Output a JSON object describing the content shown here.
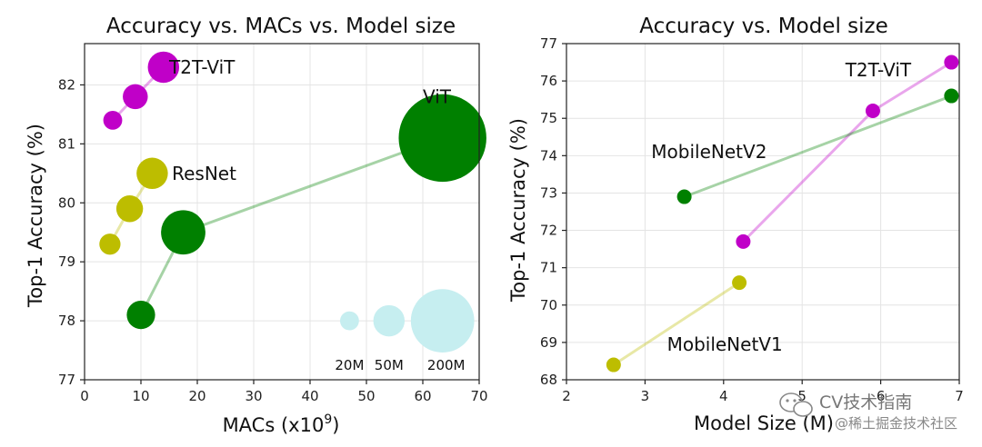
{
  "chart_data": [
    {
      "type": "scatter",
      "title": "Accuracy vs. MACs vs. Model size",
      "xlabel": "MACs (x10",
      "xlabel_sup": "9",
      "xlabel_close": ")",
      "ylabel": "Top-1 Accuracy (%)",
      "xlim": [
        0,
        70
      ],
      "ylim": [
        77,
        82.7
      ],
      "xticks": [
        "0",
        "10",
        "20",
        "30",
        "40",
        "50",
        "60",
        "70"
      ],
      "yticks": [
        "77",
        "78",
        "79",
        "80",
        "81",
        "82"
      ],
      "grid": true,
      "series": [
        {
          "name": "T2T-ViT",
          "color": "#c000c8",
          "label_at": [
            15,
            82.3
          ],
          "points": [
            {
              "x": 5,
              "y": 81.4,
              "size_m": 4
            },
            {
              "x": 9,
              "y": 81.8,
              "size_m": 7
            },
            {
              "x": 14,
              "y": 82.3,
              "size_m": 11
            }
          ]
        },
        {
          "name": "ResNet",
          "color": "#bdbd00",
          "label_at": [
            15.5,
            80.5
          ],
          "points": [
            {
              "x": 4.5,
              "y": 79.3,
              "size_m": 5
            },
            {
              "x": 8,
              "y": 79.9,
              "size_m": 8
            },
            {
              "x": 12,
              "y": 80.5,
              "size_m": 11
            }
          ]
        },
        {
          "name": "ViT",
          "color": "#008000",
          "label_at": [
            60,
            81.8
          ],
          "points": [
            {
              "x": 10,
              "y": 78.1,
              "size_m": 9
            },
            {
              "x": 17.5,
              "y": 79.5,
              "size_m": 22
            },
            {
              "x": 63.5,
              "y": 81.1,
              "size_m": 86
            }
          ]
        }
      ],
      "size_legend": {
        "color": "#c6eef0",
        "items": [
          {
            "label": "20M",
            "x": 47,
            "y": 78,
            "size_m": 4
          },
          {
            "label": "50M",
            "x": 54,
            "y": 78,
            "size_m": 11
          },
          {
            "label": "200M",
            "x": 63.5,
            "y": 78,
            "size_m": 45
          }
        ]
      }
    },
    {
      "type": "line",
      "title": "Accuracy vs. Model size",
      "xlabel": "Model Size (M)",
      "ylabel": "Top-1 Accuracy (%)",
      "xlim": [
        2,
        7
      ],
      "ylim": [
        68,
        77
      ],
      "xticks": [
        "2",
        "3",
        "4",
        "5",
        "6",
        "7"
      ],
      "yticks": [
        "68",
        "69",
        "70",
        "71",
        "72",
        "73",
        "74",
        "75",
        "76",
        "77"
      ],
      "grid": true,
      "series": [
        {
          "name": "T2T-ViT",
          "color": "#c000c8",
          "label_at": [
            5.55,
            76.3
          ],
          "points": [
            {
              "x": 4.25,
              "y": 71.7
            },
            {
              "x": 5.9,
              "y": 75.2
            },
            {
              "x": 6.9,
              "y": 76.5
            }
          ]
        },
        {
          "name": "MobileNetV2",
          "color": "#008000",
          "label_at": [
            3.08,
            74.1
          ],
          "points": [
            {
              "x": 3.5,
              "y": 72.9
            },
            {
              "x": 6.9,
              "y": 75.6
            }
          ]
        },
        {
          "name": "MobileNetV1",
          "color": "#bdbd00",
          "label_at": [
            3.28,
            68.95
          ],
          "points": [
            {
              "x": 2.6,
              "y": 68.4
            },
            {
              "x": 4.2,
              "y": 70.6
            }
          ]
        }
      ]
    }
  ],
  "watermark": {
    "line1": "CV技术指南",
    "line2": "@稀土掘金技术社区"
  }
}
